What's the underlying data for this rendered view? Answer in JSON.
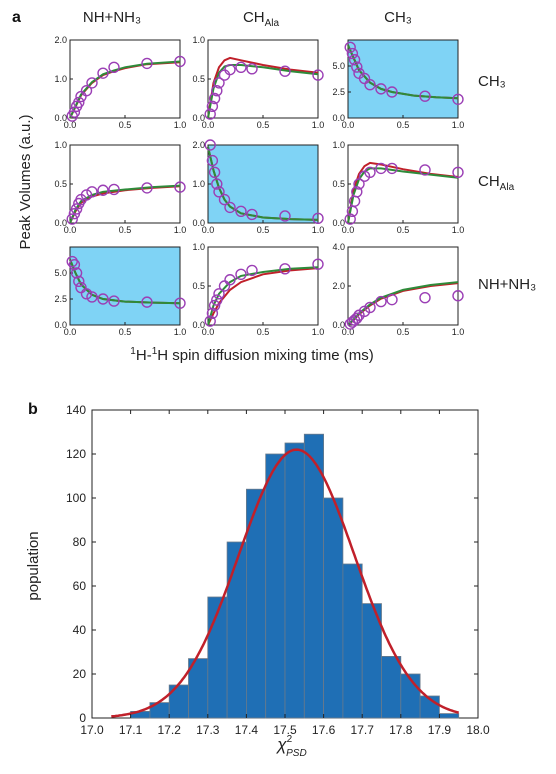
{
  "figure": {
    "panel_a_letter": "a",
    "panel_b_letter": "b"
  },
  "panel_a": {
    "column_headers": [
      "NH+NH₃",
      "CH",
      "CH₃"
    ],
    "column_header_subscript": "Ala",
    "row_headers": [
      "CH₃",
      "CH",
      "NH+NH₃"
    ],
    "row_header_subscript": "Ala",
    "ylabel": "Peak Volumes (a.u.)",
    "xlabel_sup1": "1",
    "xlabel_h1": "H-",
    "xlabel_sup2": "1",
    "xlabel_rest": "H spin diffusion mixing time (ms)",
    "x_tick_labels": [
      "0.0",
      "0.5",
      "1.0"
    ]
  },
  "chart_data": [
    {
      "type": "scatter",
      "panel": "a",
      "layout": "3x3 grid",
      "colors": {
        "data_markers": "#9b3fb5",
        "fit_red": "#c0202a",
        "fit_green": "#2e8b3a",
        "highlight_fill": "#7fd3f5"
      },
      "xlim": [
        0,
        1.0
      ],
      "subplots": [
        {
          "row": 0,
          "col": 0,
          "highlighted": false,
          "ylim": [
            0,
            2.0
          ],
          "y_tick_labels": [
            "0.0",
            "1.0",
            "2.0"
          ],
          "x": [
            0.02,
            0.04,
            0.06,
            0.08,
            0.1,
            0.15,
            0.2,
            0.3,
            0.4,
            0.7,
            1.0
          ],
          "y": [
            0.05,
            0.15,
            0.3,
            0.4,
            0.55,
            0.7,
            0.9,
            1.15,
            1.3,
            1.4,
            1.45
          ],
          "fit_red": [
            [
              0,
              0
            ],
            [
              0.1,
              0.58
            ],
            [
              0.2,
              0.9
            ],
            [
              0.3,
              1.1
            ],
            [
              0.4,
              1.2
            ],
            [
              0.5,
              1.28
            ],
            [
              0.7,
              1.38
            ],
            [
              1.0,
              1.43
            ]
          ],
          "fit_green": [
            [
              0,
              0
            ],
            [
              0.1,
              0.6
            ],
            [
              0.2,
              0.92
            ],
            [
              0.3,
              1.12
            ],
            [
              0.4,
              1.22
            ],
            [
              0.5,
              1.3
            ],
            [
              0.7,
              1.39
            ],
            [
              1.0,
              1.45
            ]
          ]
        },
        {
          "row": 0,
          "col": 1,
          "highlighted": false,
          "ylim": [
            0,
            1.0
          ],
          "y_tick_labels": [
            "0.0",
            "0.5",
            "1.0"
          ],
          "x": [
            0.02,
            0.04,
            0.06,
            0.08,
            0.1,
            0.15,
            0.2,
            0.3,
            0.4,
            0.7,
            1.0
          ],
          "y": [
            0.05,
            0.15,
            0.25,
            0.35,
            0.45,
            0.55,
            0.62,
            0.65,
            0.63,
            0.6,
            0.55
          ],
          "fit_red": [
            [
              0,
              0
            ],
            [
              0.05,
              0.45
            ],
            [
              0.1,
              0.65
            ],
            [
              0.15,
              0.74
            ],
            [
              0.2,
              0.77
            ],
            [
              0.3,
              0.74
            ],
            [
              0.5,
              0.68
            ],
            [
              0.75,
              0.62
            ],
            [
              1.0,
              0.58
            ]
          ],
          "fit_green": [
            [
              0,
              0
            ],
            [
              0.05,
              0.38
            ],
            [
              0.1,
              0.58
            ],
            [
              0.15,
              0.66
            ],
            [
              0.2,
              0.68
            ],
            [
              0.3,
              0.68
            ],
            [
              0.5,
              0.65
            ],
            [
              0.75,
              0.6
            ],
            [
              1.0,
              0.56
            ]
          ]
        },
        {
          "row": 0,
          "col": 2,
          "highlighted": true,
          "ylim": [
            0,
            7.5
          ],
          "y_tick_labels": [
            "0.0",
            "2.5",
            "5.0"
          ],
          "x": [
            0.02,
            0.04,
            0.06,
            0.08,
            0.1,
            0.15,
            0.2,
            0.3,
            0.4,
            0.7,
            1.0
          ],
          "y": [
            6.8,
            6.2,
            5.6,
            4.9,
            4.3,
            3.8,
            3.2,
            2.8,
            2.5,
            2.1,
            1.8
          ],
          "fit_red": [
            [
              0,
              7.0
            ],
            [
              0.1,
              4.6
            ],
            [
              0.2,
              3.4
            ],
            [
              0.3,
              2.8
            ],
            [
              0.4,
              2.5
            ],
            [
              0.6,
              2.15
            ],
            [
              0.8,
              2.0
            ],
            [
              1.0,
              1.9
            ]
          ],
          "fit_green": [
            [
              0,
              7.0
            ],
            [
              0.1,
              4.6
            ],
            [
              0.2,
              3.4
            ],
            [
              0.3,
              2.8
            ],
            [
              0.4,
              2.5
            ],
            [
              0.6,
              2.15
            ],
            [
              0.8,
              2.0
            ],
            [
              1.0,
              1.9
            ]
          ]
        },
        {
          "row": 1,
          "col": 0,
          "highlighted": false,
          "ylim": [
            0,
            1.0
          ],
          "y_tick_labels": [
            "0.0",
            "0.5",
            "1.0"
          ],
          "x": [
            0.02,
            0.04,
            0.06,
            0.08,
            0.1,
            0.15,
            0.2,
            0.3,
            0.4,
            0.7,
            1.0
          ],
          "y": [
            0.05,
            0.12,
            0.18,
            0.25,
            0.3,
            0.36,
            0.4,
            0.42,
            0.43,
            0.45,
            0.46
          ],
          "fit_red": [
            [
              0,
              0
            ],
            [
              0.05,
              0.15
            ],
            [
              0.1,
              0.26
            ],
            [
              0.2,
              0.34
            ],
            [
              0.3,
              0.38
            ],
            [
              0.5,
              0.42
            ],
            [
              0.75,
              0.45
            ],
            [
              1.0,
              0.47
            ]
          ],
          "fit_green": [
            [
              0,
              0
            ],
            [
              0.05,
              0.17
            ],
            [
              0.1,
              0.28
            ],
            [
              0.2,
              0.36
            ],
            [
              0.3,
              0.4
            ],
            [
              0.5,
              0.43
            ],
            [
              0.75,
              0.46
            ],
            [
              1.0,
              0.48
            ]
          ]
        },
        {
          "row": 1,
          "col": 1,
          "highlighted": true,
          "ylim": [
            0,
            2.0
          ],
          "y_tick_labels": [
            "0.0",
            "1.0",
            "2.0"
          ],
          "x": [
            0.02,
            0.04,
            0.06,
            0.08,
            0.1,
            0.15,
            0.2,
            0.3,
            0.4,
            0.7,
            1.0
          ],
          "y": [
            2.0,
            1.6,
            1.3,
            1.0,
            0.8,
            0.6,
            0.4,
            0.3,
            0.22,
            0.18,
            0.12
          ],
          "fit_red": [
            [
              0,
              1.95
            ],
            [
              0.05,
              1.35
            ],
            [
              0.1,
              0.9
            ],
            [
              0.15,
              0.6
            ],
            [
              0.2,
              0.42
            ],
            [
              0.3,
              0.25
            ],
            [
              0.5,
              0.14
            ],
            [
              0.75,
              0.1
            ],
            [
              1.0,
              0.08
            ]
          ],
          "fit_green": [
            [
              0,
              1.95
            ],
            [
              0.05,
              1.35
            ],
            [
              0.1,
              0.9
            ],
            [
              0.15,
              0.6
            ],
            [
              0.2,
              0.42
            ],
            [
              0.3,
              0.25
            ],
            [
              0.5,
              0.14
            ],
            [
              0.75,
              0.1
            ],
            [
              1.0,
              0.08
            ]
          ]
        },
        {
          "row": 1,
          "col": 2,
          "highlighted": false,
          "ylim": [
            0,
            1.0
          ],
          "y_tick_labels": [
            "0.0",
            "0.5",
            "1.0"
          ],
          "x": [
            0.02,
            0.04,
            0.06,
            0.08,
            0.1,
            0.15,
            0.2,
            0.3,
            0.4,
            0.7,
            1.0
          ],
          "y": [
            0.05,
            0.15,
            0.28,
            0.4,
            0.5,
            0.6,
            0.65,
            0.7,
            0.7,
            0.68,
            0.65
          ],
          "fit_red": [
            [
              0,
              0
            ],
            [
              0.05,
              0.42
            ],
            [
              0.1,
              0.63
            ],
            [
              0.15,
              0.73
            ],
            [
              0.2,
              0.77
            ],
            [
              0.3,
              0.75
            ],
            [
              0.5,
              0.69
            ],
            [
              0.75,
              0.63
            ],
            [
              1.0,
              0.59
            ]
          ],
          "fit_green": [
            [
              0,
              0
            ],
            [
              0.05,
              0.36
            ],
            [
              0.1,
              0.56
            ],
            [
              0.15,
              0.66
            ],
            [
              0.2,
              0.7
            ],
            [
              0.3,
              0.7
            ],
            [
              0.5,
              0.66
            ],
            [
              0.75,
              0.62
            ],
            [
              1.0,
              0.58
            ]
          ]
        },
        {
          "row": 2,
          "col": 0,
          "highlighted": true,
          "ylim": [
            0,
            7.5
          ],
          "y_tick_labels": [
            "0.0",
            "2.5",
            "5.0"
          ],
          "x": [
            0.02,
            0.04,
            0.06,
            0.08,
            0.1,
            0.15,
            0.2,
            0.3,
            0.4,
            0.7,
            1.0
          ],
          "y": [
            6.1,
            5.8,
            5.0,
            4.2,
            3.6,
            3.0,
            2.7,
            2.5,
            2.3,
            2.2,
            2.1
          ],
          "fit_red": [
            [
              0,
              6.3
            ],
            [
              0.05,
              5.0
            ],
            [
              0.1,
              3.9
            ],
            [
              0.2,
              2.9
            ],
            [
              0.3,
              2.5
            ],
            [
              0.5,
              2.25
            ],
            [
              0.75,
              2.15
            ],
            [
              1.0,
              2.1
            ]
          ],
          "fit_green": [
            [
              0,
              6.3
            ],
            [
              0.05,
              5.0
            ],
            [
              0.1,
              3.9
            ],
            [
              0.2,
              2.9
            ],
            [
              0.3,
              2.5
            ],
            [
              0.5,
              2.25
            ],
            [
              0.75,
              2.15
            ],
            [
              1.0,
              2.1
            ]
          ]
        },
        {
          "row": 2,
          "col": 1,
          "highlighted": false,
          "ylim": [
            0,
            1.0
          ],
          "y_tick_labels": [
            "0.0",
            "0.5",
            "1.0"
          ],
          "x": [
            0.02,
            0.04,
            0.06,
            0.08,
            0.1,
            0.15,
            0.2,
            0.3,
            0.4,
            0.7,
            1.0
          ],
          "y": [
            0.05,
            0.15,
            0.25,
            0.32,
            0.4,
            0.5,
            0.58,
            0.65,
            0.7,
            0.72,
            0.78
          ],
          "fit_red": [
            [
              0,
              0
            ],
            [
              0.05,
              0.15
            ],
            [
              0.1,
              0.28
            ],
            [
              0.2,
              0.45
            ],
            [
              0.3,
              0.55
            ],
            [
              0.5,
              0.65
            ],
            [
              0.75,
              0.7
            ],
            [
              1.0,
              0.73
            ]
          ],
          "fit_green": [
            [
              0,
              0
            ],
            [
              0.05,
              0.25
            ],
            [
              0.1,
              0.4
            ],
            [
              0.2,
              0.55
            ],
            [
              0.3,
              0.63
            ],
            [
              0.5,
              0.68
            ],
            [
              0.75,
              0.72
            ],
            [
              1.0,
              0.74
            ]
          ]
        },
        {
          "row": 2,
          "col": 2,
          "highlighted": false,
          "ylim": [
            0,
            4.0
          ],
          "y_tick_labels": [
            "0.0",
            "2.0",
            "4.0"
          ],
          "x": [
            0.02,
            0.04,
            0.06,
            0.08,
            0.1,
            0.15,
            0.2,
            0.3,
            0.4,
            0.7,
            1.0
          ],
          "y": [
            0.05,
            0.15,
            0.25,
            0.35,
            0.5,
            0.7,
            0.9,
            1.2,
            1.3,
            1.4,
            1.5
          ],
          "fit_red": [
            [
              0,
              0
            ],
            [
              0.05,
              0.25
            ],
            [
              0.1,
              0.55
            ],
            [
              0.2,
              1.0
            ],
            [
              0.3,
              1.35
            ],
            [
              0.5,
              1.75
            ],
            [
              0.75,
              2.0
            ],
            [
              1.0,
              2.15
            ]
          ],
          "fit_green": [
            [
              0,
              0
            ],
            [
              0.05,
              0.28
            ],
            [
              0.1,
              0.6
            ],
            [
              0.2,
              1.05
            ],
            [
              0.3,
              1.4
            ],
            [
              0.5,
              1.8
            ],
            [
              0.75,
              2.05
            ],
            [
              1.0,
              2.2
            ]
          ]
        }
      ]
    },
    {
      "type": "bar",
      "panel": "b",
      "subtype": "histogram with fitted gaussian",
      "ylabel": "population",
      "xlabel_base": "χ",
      "xlabel_sup": "2",
      "xlabel_sub": "PSD",
      "xlim": [
        17.0,
        18.0
      ],
      "ylim": [
        0,
        140
      ],
      "x_tick_labels": [
        "17.0",
        "17.1",
        "17.2",
        "17.3",
        "17.4",
        "17.5",
        "17.6",
        "17.7",
        "17.8",
        "17.9",
        "18.0"
      ],
      "y_tick_labels": [
        "0",
        "20",
        "40",
        "60",
        "80",
        "100",
        "120",
        "140"
      ],
      "bin_width": 0.05,
      "bin_centers": [
        17.125,
        17.175,
        17.225,
        17.275,
        17.325,
        17.375,
        17.425,
        17.475,
        17.525,
        17.575,
        17.625,
        17.675,
        17.725,
        17.775,
        17.825,
        17.875,
        17.925
      ],
      "values": [
        3,
        7,
        15,
        27,
        55,
        80,
        104,
        120,
        125,
        129,
        100,
        70,
        52,
        28,
        20,
        10,
        2
      ],
      "fit_gaussian": {
        "mean": 17.53,
        "peak": 122,
        "sigma": 0.15
      },
      "colors": {
        "bars": "#1f6fb5",
        "bar_edge": "#6a7a8a",
        "fit": "#c0202a"
      }
    }
  ]
}
